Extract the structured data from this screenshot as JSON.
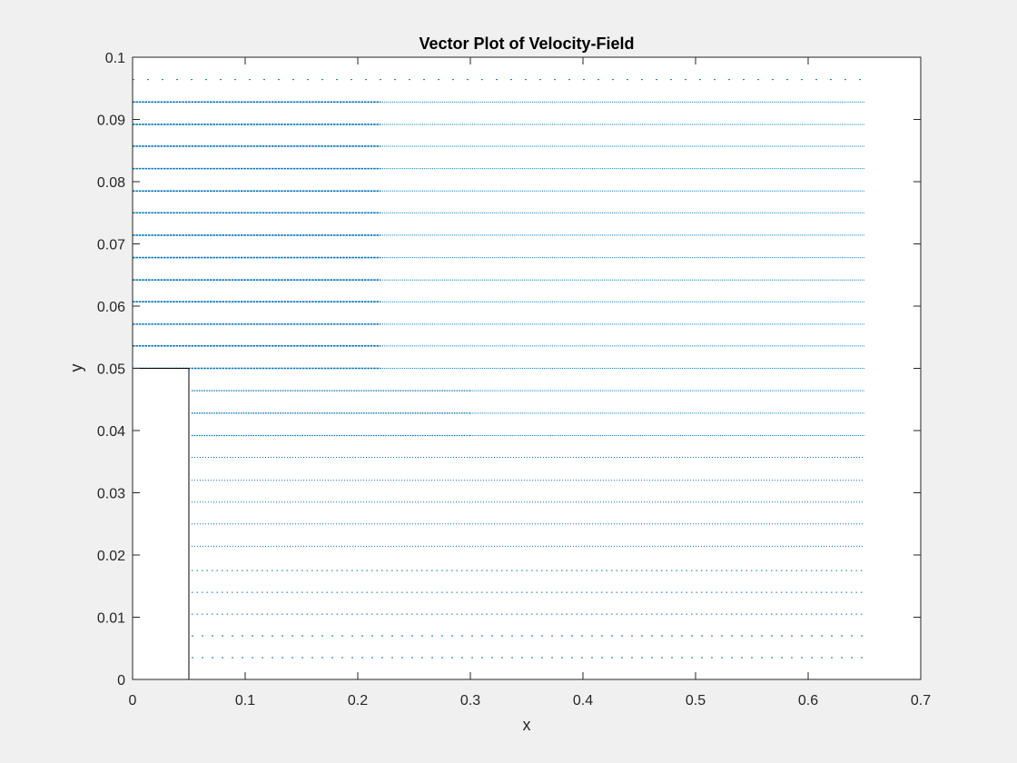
{
  "chart_data": {
    "type": "quiver",
    "title": "Vector Plot of Velocity-Field",
    "xlabel": "x",
    "ylabel": "y",
    "xlim": [
      0,
      0.7
    ],
    "ylim": [
      0,
      0.1
    ],
    "xticks": [
      0,
      0.1,
      0.2,
      0.3,
      0.4,
      0.5,
      0.6,
      0.7
    ],
    "xtick_labels": [
      "0",
      "0.1",
      "0.2",
      "0.3",
      "0.4",
      "0.5",
      "0.6",
      "0.7"
    ],
    "yticks": [
      0,
      0.01,
      0.02,
      0.03,
      0.04,
      0.05,
      0.06,
      0.07,
      0.08,
      0.09,
      0.1
    ],
    "ytick_labels": [
      "0",
      "0.01",
      "0.02",
      "0.03",
      "0.04",
      "0.05",
      "0.06",
      "0.07",
      "0.08",
      "0.09",
      "0.1"
    ],
    "grid": false,
    "vector_color": "#0072bd",
    "vector_rows_y": [
      0.0035,
      0.007,
      0.0105,
      0.014,
      0.0175,
      0.0214,
      0.025,
      0.0285,
      0.032,
      0.0357,
      0.0392,
      0.0428,
      0.0464,
      0.05,
      0.0536,
      0.0571,
      0.0607,
      0.0642,
      0.0678,
      0.0714,
      0.075,
      0.0785,
      0.0821,
      0.0857,
      0.0892,
      0.0928,
      0.0964
    ],
    "field_x_range": [
      0,
      0.65
    ],
    "step": {
      "x_range": [
        0,
        0.05
      ],
      "y_range": [
        0,
        0.05
      ]
    }
  },
  "colors": {
    "figure_background": "#f0f0f0",
    "axes_background": "#ffffff",
    "axes_line": "#262626",
    "step_outline": "#000000"
  }
}
